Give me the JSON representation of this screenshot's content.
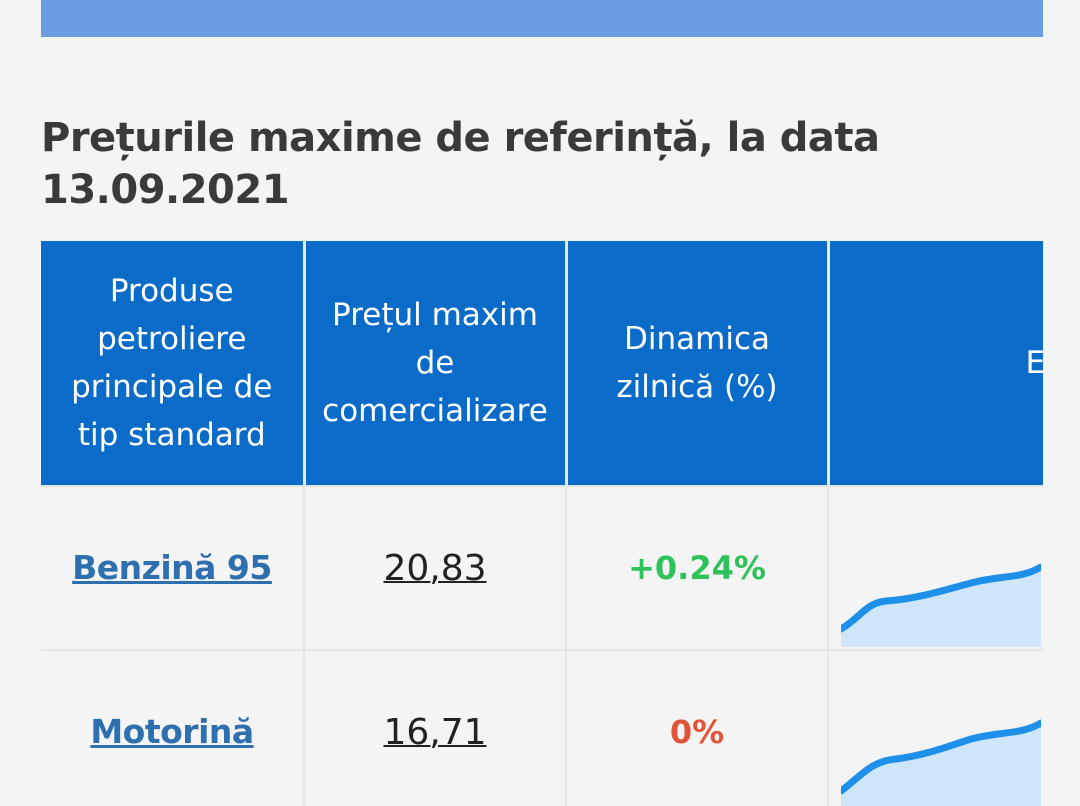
{
  "header": {
    "title": "Prețurile maxime de referință, la data 13.09.2021"
  },
  "table": {
    "columns": [
      "Produse petroliere principale de tip standard",
      "Prețul maxim de comercializare",
      "Dinamica zilnică (%)",
      "E"
    ],
    "rows": [
      {
        "product": "Benzină 95",
        "price": "20,83",
        "dynamic": "+0.24%",
        "dynamic_color": "#2ec25a",
        "trend_icon": "sparkline-rising"
      },
      {
        "product": "Motorină",
        "price": "16,71",
        "dynamic": "0%",
        "dynamic_color": "#e0553a",
        "trend_icon": "sparkline-rising"
      }
    ]
  },
  "colors": {
    "accent_bar": "#6a9de2",
    "header_bg": "#0a6bc9",
    "link": "#2e6fb0",
    "sparkline": "#1e90ea"
  }
}
